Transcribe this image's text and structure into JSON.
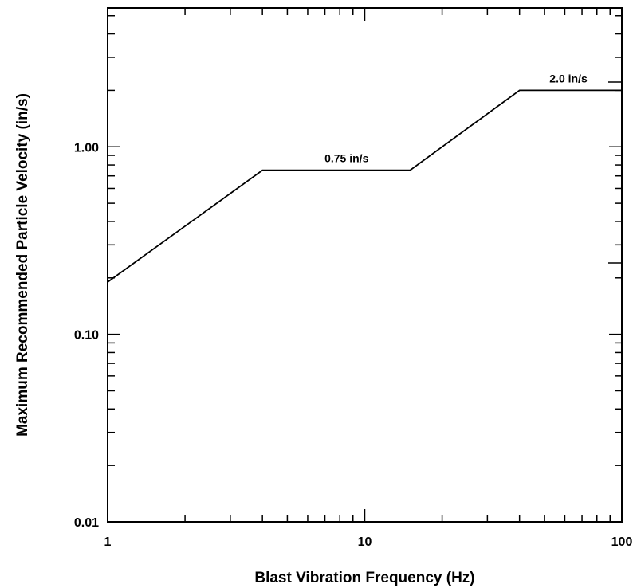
{
  "chart_data": {
    "type": "line",
    "xlabel": "Blast Vibration Frequency (Hz)",
    "ylabel": "Maximum Recommended Particle Velocity (in/s)",
    "x_scale": "log",
    "y_scale": "log",
    "xlim": [
      1,
      100
    ],
    "ylim": [
      0.01,
      5.5
    ],
    "x_ticks": [
      {
        "value": 1,
        "label": "1"
      },
      {
        "value": 10,
        "label": "10"
      },
      {
        "value": 100,
        "label": "100"
      }
    ],
    "y_ticks": [
      {
        "value": 0.01,
        "label": "0.01"
      },
      {
        "value": 0.1,
        "label": "0.10"
      },
      {
        "value": 1,
        "label": "1.00"
      }
    ],
    "grid": false,
    "series": [
      {
        "x": [
          1,
          4,
          15,
          40,
          100
        ],
        "y": [
          0.19,
          0.75,
          0.75,
          2.0,
          2.0
        ]
      }
    ],
    "annotations": [
      {
        "text": "0.75 in/s",
        "x": 8.5,
        "y": 0.75
      },
      {
        "text": "2.0 in/s",
        "x": 62,
        "y": 2.0
      }
    ]
  }
}
